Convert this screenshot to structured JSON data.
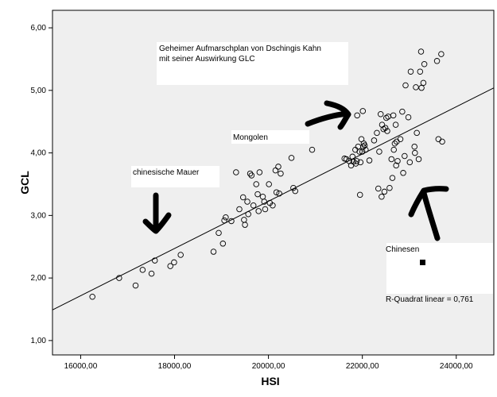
{
  "chart_data": {
    "type": "scatter",
    "title": "",
    "xlabel": "HSI",
    "ylabel": "GCL",
    "xlim": [
      15400,
      24800
    ],
    "ylim": [
      0.77,
      6.28
    ],
    "xticks": [
      16000,
      18000,
      20000,
      22000,
      24000
    ],
    "xtick_labels": [
      "16000,00",
      "18000,00",
      "20000,00",
      "22000,00",
      "24000,00"
    ],
    "yticks": [
      1,
      2,
      3,
      4,
      5,
      6
    ],
    "ytick_labels": [
      "1,00",
      "2,00",
      "3,00",
      "4,00",
      "5,00",
      "6,00"
    ],
    "grid": false,
    "plot_background": "#efefef",
    "point_color": "#000000",
    "regression_line": {
      "x": [
        15400,
        24800
      ],
      "y": [
        1.49,
        5.04
      ]
    },
    "r_squared_label": "R-Quadrat linear = 0,761",
    "annotations": [
      {
        "id": "plan",
        "text": "Geheimer Aufmarschplan von Dschingis Kahn\nmit seiner Auswirkung GLC"
      },
      {
        "id": "mongolen",
        "text": "Mongolen"
      },
      {
        "id": "mauer",
        "text": "chinesische Mauer"
      },
      {
        "id": "chinesen",
        "text": "Chinesen"
      }
    ],
    "points": [
      [
        16250,
        1.7
      ],
      [
        16820,
        2.0
      ],
      [
        17170,
        1.88
      ],
      [
        17320,
        2.13
      ],
      [
        17510,
        2.07
      ],
      [
        17580,
        2.28
      ],
      [
        17910,
        2.19
      ],
      [
        17990,
        2.25
      ],
      [
        18130,
        2.37
      ],
      [
        18830,
        2.42
      ],
      [
        18940,
        2.72
      ],
      [
        19030,
        2.55
      ],
      [
        19060,
        2.92
      ],
      [
        19090,
        2.97
      ],
      [
        19210,
        2.91
      ],
      [
        19310,
        3.69
      ],
      [
        19380,
        3.1
      ],
      [
        19460,
        3.29
      ],
      [
        19480,
        2.93
      ],
      [
        19500,
        2.85
      ],
      [
        19550,
        3.22
      ],
      [
        19570,
        3.02
      ],
      [
        19610,
        3.67
      ],
      [
        19640,
        3.64
      ],
      [
        19680,
        3.16
      ],
      [
        19740,
        3.5
      ],
      [
        19770,
        3.34
      ],
      [
        19790,
        3.07
      ],
      [
        19810,
        3.69
      ],
      [
        19880,
        3.3
      ],
      [
        19910,
        3.22
      ],
      [
        19930,
        3.1
      ],
      [
        20010,
        3.5
      ],
      [
        20030,
        3.2
      ],
      [
        20090,
        3.16
      ],
      [
        20150,
        3.72
      ],
      [
        20170,
        3.37
      ],
      [
        20210,
        3.78
      ],
      [
        20230,
        3.35
      ],
      [
        20260,
        3.67
      ],
      [
        20490,
        3.92
      ],
      [
        20530,
        3.44
      ],
      [
        20570,
        3.39
      ],
      [
        20930,
        4.05
      ],
      [
        21620,
        3.91
      ],
      [
        21660,
        3.9
      ],
      [
        21720,
        3.87
      ],
      [
        21760,
        3.8
      ],
      [
        21790,
        3.94
      ],
      [
        21810,
        3.86
      ],
      [
        21850,
        4.05
      ],
      [
        21860,
        3.83
      ],
      [
        21880,
        3.87
      ],
      [
        21890,
        4.6
      ],
      [
        21910,
        4.1
      ],
      [
        21940,
        4.02
      ],
      [
        21950,
        3.33
      ],
      [
        21960,
        3.85
      ],
      [
        21980,
        4.22
      ],
      [
        22000,
        4.02
      ],
      [
        22010,
        4.67
      ],
      [
        22020,
        4.1
      ],
      [
        22030,
        4.15
      ],
      [
        22050,
        4.12
      ],
      [
        22070,
        4.05
      ],
      [
        22150,
        3.88
      ],
      [
        22250,
        4.2
      ],
      [
        22310,
        4.32
      ],
      [
        22340,
        3.43
      ],
      [
        22360,
        4.02
      ],
      [
        22390,
        4.62
      ],
      [
        22410,
        3.3
      ],
      [
        22420,
        4.45
      ],
      [
        22450,
        4.38
      ],
      [
        22470,
        3.38
      ],
      [
        22490,
        4.4
      ],
      [
        22510,
        4.56
      ],
      [
        22530,
        4.35
      ],
      [
        22550,
        4.58
      ],
      [
        22580,
        3.44
      ],
      [
        22620,
        3.9
      ],
      [
        22640,
        3.6
      ],
      [
        22660,
        4.6
      ],
      [
        22670,
        4.05
      ],
      [
        22690,
        4.15
      ],
      [
        22710,
        4.45
      ],
      [
        22720,
        3.8
      ],
      [
        22730,
        4.18
      ],
      [
        22750,
        3.87
      ],
      [
        22810,
        4.22
      ],
      [
        22850,
        4.66
      ],
      [
        22870,
        3.68
      ],
      [
        22900,
        3.95
      ],
      [
        22920,
        5.08
      ],
      [
        22980,
        4.57
      ],
      [
        23010,
        3.85
      ],
      [
        23030,
        5.3
      ],
      [
        23110,
        4.1
      ],
      [
        23120,
        4.0
      ],
      [
        23140,
        5.05
      ],
      [
        23160,
        4.32
      ],
      [
        23200,
        3.9
      ],
      [
        23230,
        5.3
      ],
      [
        23250,
        5.62
      ],
      [
        23260,
        5.04
      ],
      [
        23300,
        5.12
      ],
      [
        23320,
        5.42
      ],
      [
        23590,
        5.47
      ],
      [
        23620,
        4.22
      ],
      [
        23680,
        5.58
      ],
      [
        23700,
        4.18
      ]
    ]
  }
}
